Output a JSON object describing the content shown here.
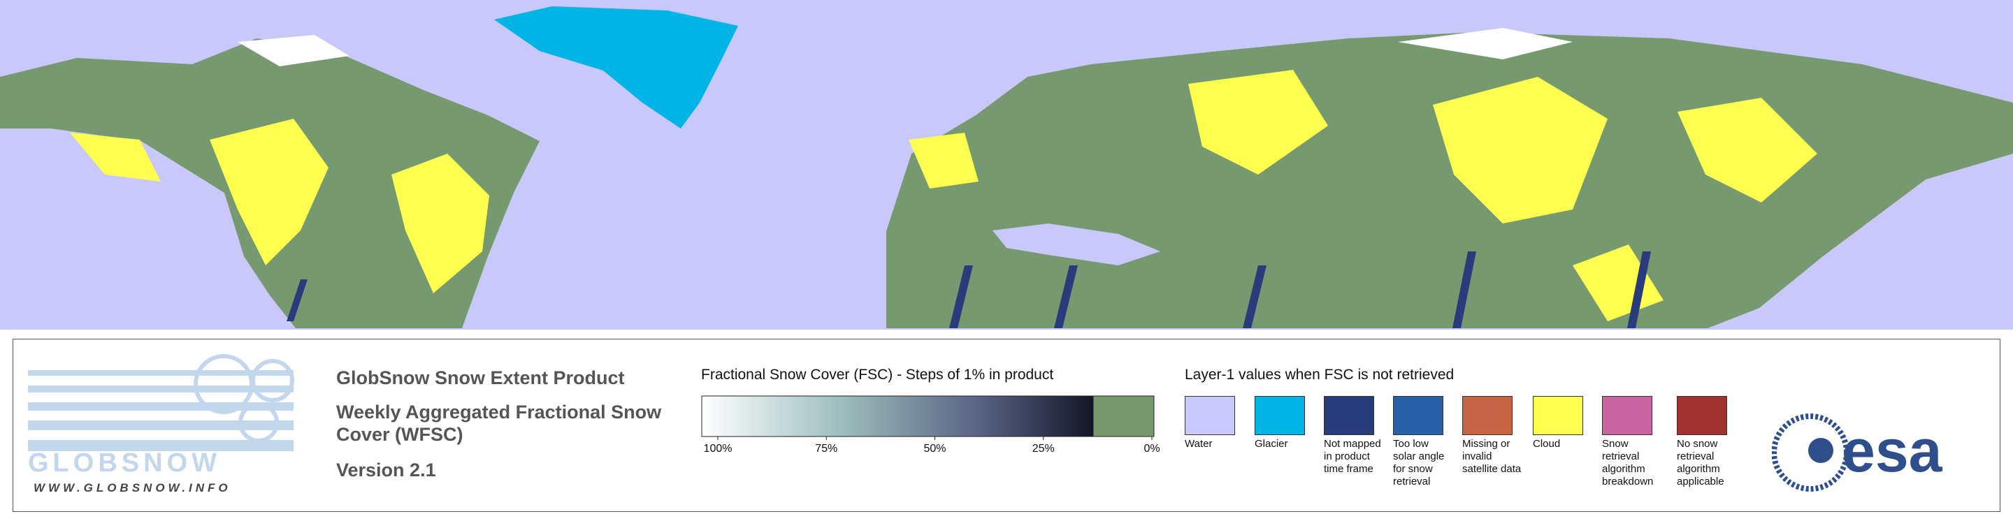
{
  "logo": {
    "name": "GLOBSNOW",
    "url": "WWW.GLOBSNOW.INFO"
  },
  "header": {
    "title": "GlobSnow Snow Extent Product",
    "subtitle": "Weekly Aggregated Fractional Snow Cover (WFSC)",
    "version": "Version 2.1"
  },
  "fsc_legend": {
    "title": "Fractional Snow Cover (FSC) - Steps of 1% in product",
    "ticks": [
      {
        "value": 100,
        "label": "100%"
      },
      {
        "value": 75,
        "label": "75%"
      },
      {
        "value": 50,
        "label": "50%"
      },
      {
        "value": 25,
        "label": "25%"
      },
      {
        "value": 0,
        "label": "0%"
      }
    ]
  },
  "layer_legend": {
    "title": "Layer-1 values when FSC is not retrieved",
    "items": [
      {
        "label": "Water",
        "color": "#c8c8fa"
      },
      {
        "label": "Glacier",
        "color": "#00b4e6"
      },
      {
        "label": "Not mapped in product time frame",
        "color": "#283c7c"
      },
      {
        "label": "Too low solar angle for snow retrieval",
        "color": "#2860a8"
      },
      {
        "label": "Missing or invalid satellite data",
        "color": "#c86446"
      },
      {
        "label": "Cloud",
        "color": "#ffff50"
      },
      {
        "label": "Snow retrieval algorithm breakdown",
        "color": "#c864a0"
      },
      {
        "label": "No snow retrieval algorithm applicable",
        "color": "#a03232"
      }
    ]
  },
  "esa_logo": "esa"
}
